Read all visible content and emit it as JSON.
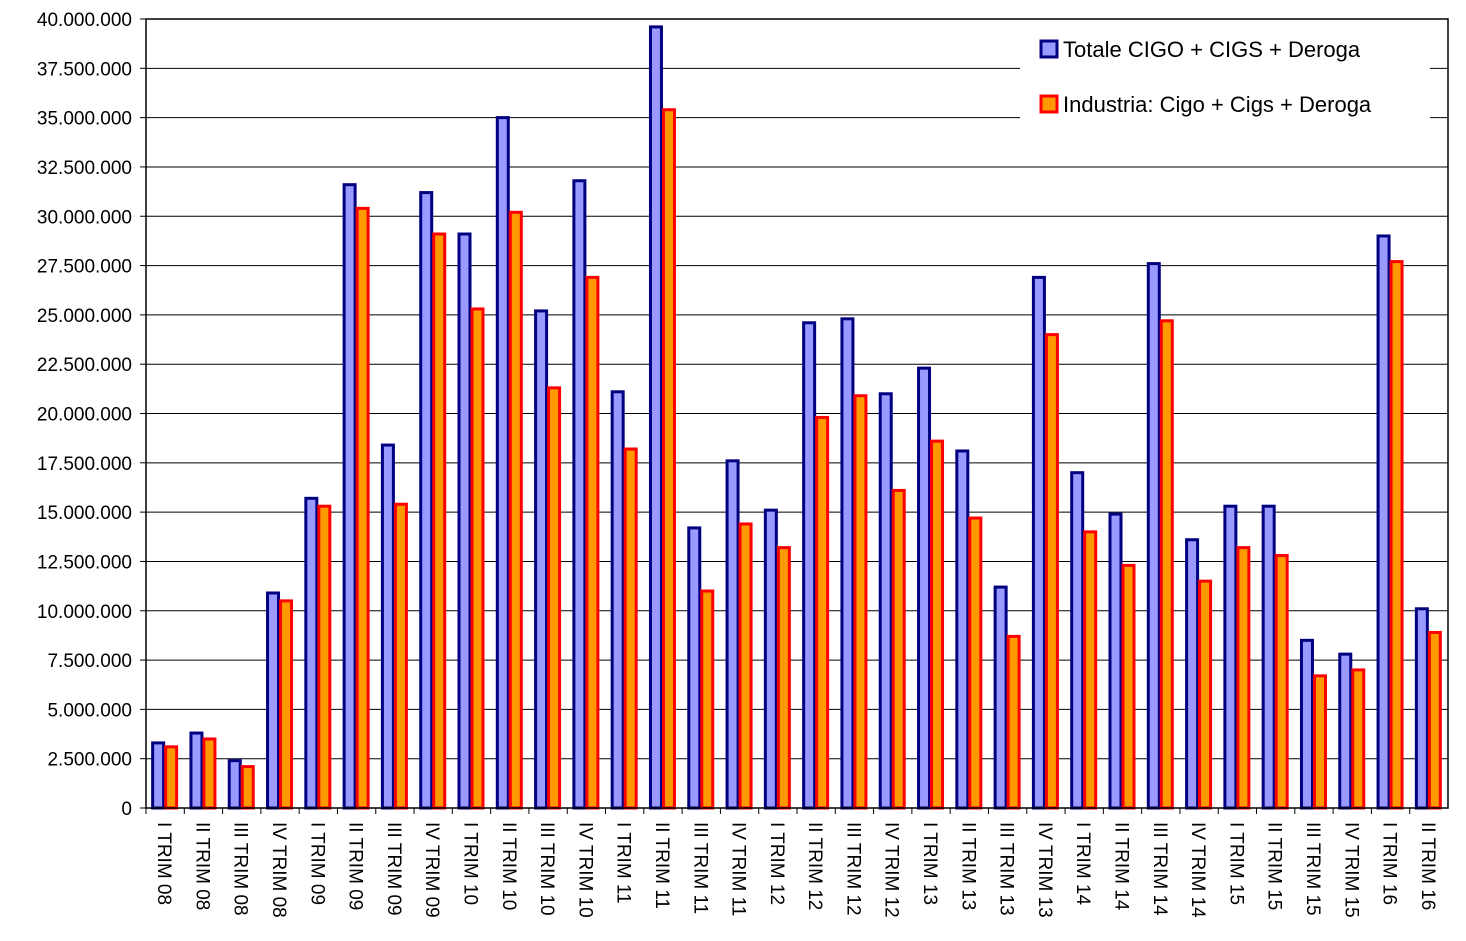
{
  "chart_data": {
    "type": "bar",
    "title": "",
    "xlabel": "",
    "ylabel": "",
    "ylim": [
      0,
      40000000
    ],
    "y_ticks": [
      "0",
      "2.500.000",
      "5.000.000",
      "7.500.000",
      "10.000.000",
      "12.500.000",
      "15.000.000",
      "17.500.000",
      "20.000.000",
      "22.500.000",
      "25.000.000",
      "27.500.000",
      "30.000.000",
      "32.500.000",
      "35.000.000",
      "37.500.000",
      "40.000.000"
    ],
    "grid": true,
    "legend_position": "top-right",
    "categories": [
      "I TRIM 08",
      "II TRIM 08",
      "III TRIM 08",
      "IV TRIM 08",
      "I TRIM 09",
      "II TRIM 09",
      "III TRIM 09",
      "IV TRIM 09",
      "I TRIM 10",
      "II TRIM 10",
      "III TRIM 10",
      "IV TRIM 10",
      "I TRIM 11",
      "II TRIM 11",
      "III TRIM 11",
      "IV TRIM 11",
      "I TRIM 12",
      "II TRIM 12",
      "III TRIM 12",
      "IV TRIM 12",
      "I TRIM 13",
      "II TRIM 13",
      "III TRIM 13",
      "IV TRIM 13",
      "I TRIM 14",
      "II TRIM 14",
      "III TRIM 14",
      "IV TRIM 14",
      "I TRIM 15",
      "II TRIM 15",
      "III TRIM 15",
      "IV TRIM 15",
      "I TRIM 16",
      "II TRIM 16"
    ],
    "series": [
      {
        "name": "Totale CIGO + CIGS + Deroga",
        "color": "#000080",
        "fill": "#9999ff",
        "values": [
          3300000,
          3800000,
          2400000,
          10900000,
          15700000,
          31600000,
          18400000,
          31200000,
          29100000,
          35000000,
          25200000,
          31800000,
          21100000,
          39600000,
          14200000,
          17600000,
          15100000,
          24600000,
          24800000,
          21000000,
          22300000,
          18100000,
          11200000,
          26900000,
          17000000,
          14900000,
          27600000,
          13600000,
          15300000,
          15300000,
          8500000,
          7800000,
          29000000,
          10100000
        ]
      },
      {
        "name": "Industria: Cigo + Cigs + Deroga",
        "color": "#ff0000",
        "fill": "#ff9900",
        "values": [
          3100000,
          3500000,
          2100000,
          10500000,
          15300000,
          30400000,
          15400000,
          29100000,
          25300000,
          30200000,
          21300000,
          26900000,
          18200000,
          35400000,
          11000000,
          14400000,
          13200000,
          19800000,
          20900000,
          16100000,
          18600000,
          14700000,
          8700000,
          24000000,
          14000000,
          12300000,
          24700000,
          11500000,
          13200000,
          12800000,
          6700000,
          7000000,
          27700000,
          8900000
        ]
      }
    ]
  }
}
